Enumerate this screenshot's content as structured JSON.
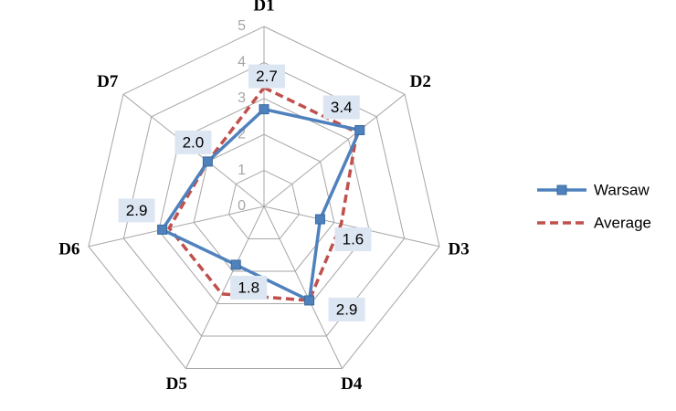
{
  "chart_data": {
    "type": "radar",
    "categories": [
      "D1",
      "D2",
      "D3",
      "D4",
      "D5",
      "D6",
      "D7"
    ],
    "rlim": [
      0,
      5
    ],
    "ticks": [
      "0",
      "1",
      "2",
      "3",
      "4",
      "5"
    ],
    "grid": true,
    "legend": "right",
    "series": [
      {
        "name": "Warsaw",
        "values": [
          2.7,
          3.4,
          1.6,
          2.9,
          1.8,
          2.9,
          2.0
        ],
        "data_labels": [
          "2.7",
          "3.4",
          "1.6",
          "2.9",
          "1.8",
          "2.9",
          "2.0"
        ],
        "color": "#4f81bd",
        "style": "solid",
        "marker": "square"
      },
      {
        "name": "Average",
        "values": [
          3.3,
          3.3,
          2.2,
          2.9,
          2.7,
          2.7,
          2.0
        ],
        "color": "#c0504d",
        "style": "dashed",
        "marker": "none"
      }
    ]
  }
}
